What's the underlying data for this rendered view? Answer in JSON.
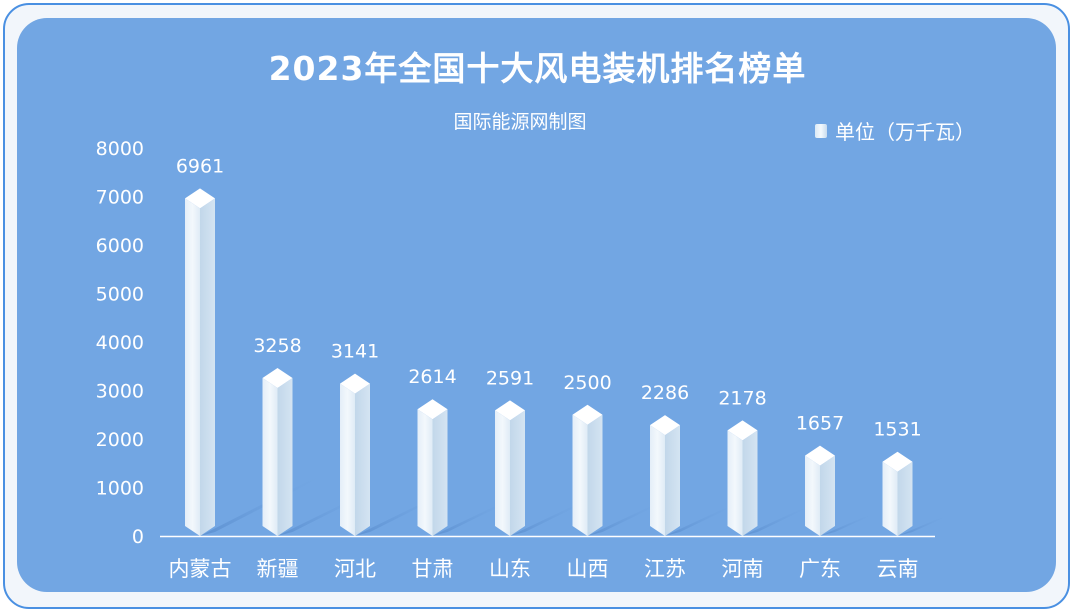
{
  "chart_data": {
    "type": "bar",
    "title": "2023年全国十大风电装机排名榜单",
    "subtitle": "国际能源网制图",
    "legend": "单位（万千瓦）",
    "legend_position": "top-right",
    "categories": [
      "内蒙古",
      "新疆",
      "河北",
      "甘肃",
      "山东",
      "山西",
      "江苏",
      "河南",
      "广东",
      "云南"
    ],
    "values": [
      6961,
      3258,
      3141,
      2614,
      2591,
      2500,
      2286,
      2178,
      1657,
      1531
    ],
    "yticks": [
      "0",
      "1000",
      "2000",
      "3000",
      "4000",
      "5000",
      "6000",
      "7000",
      "8000"
    ],
    "ylim": [
      0,
      8000
    ],
    "grid": false
  },
  "colors": {
    "panel": "#72a6e3",
    "border": "#4a90e2",
    "bar_light": "#e8f2fa",
    "bar_side": "#c5daec",
    "shadow": "#5c8fcf"
  }
}
